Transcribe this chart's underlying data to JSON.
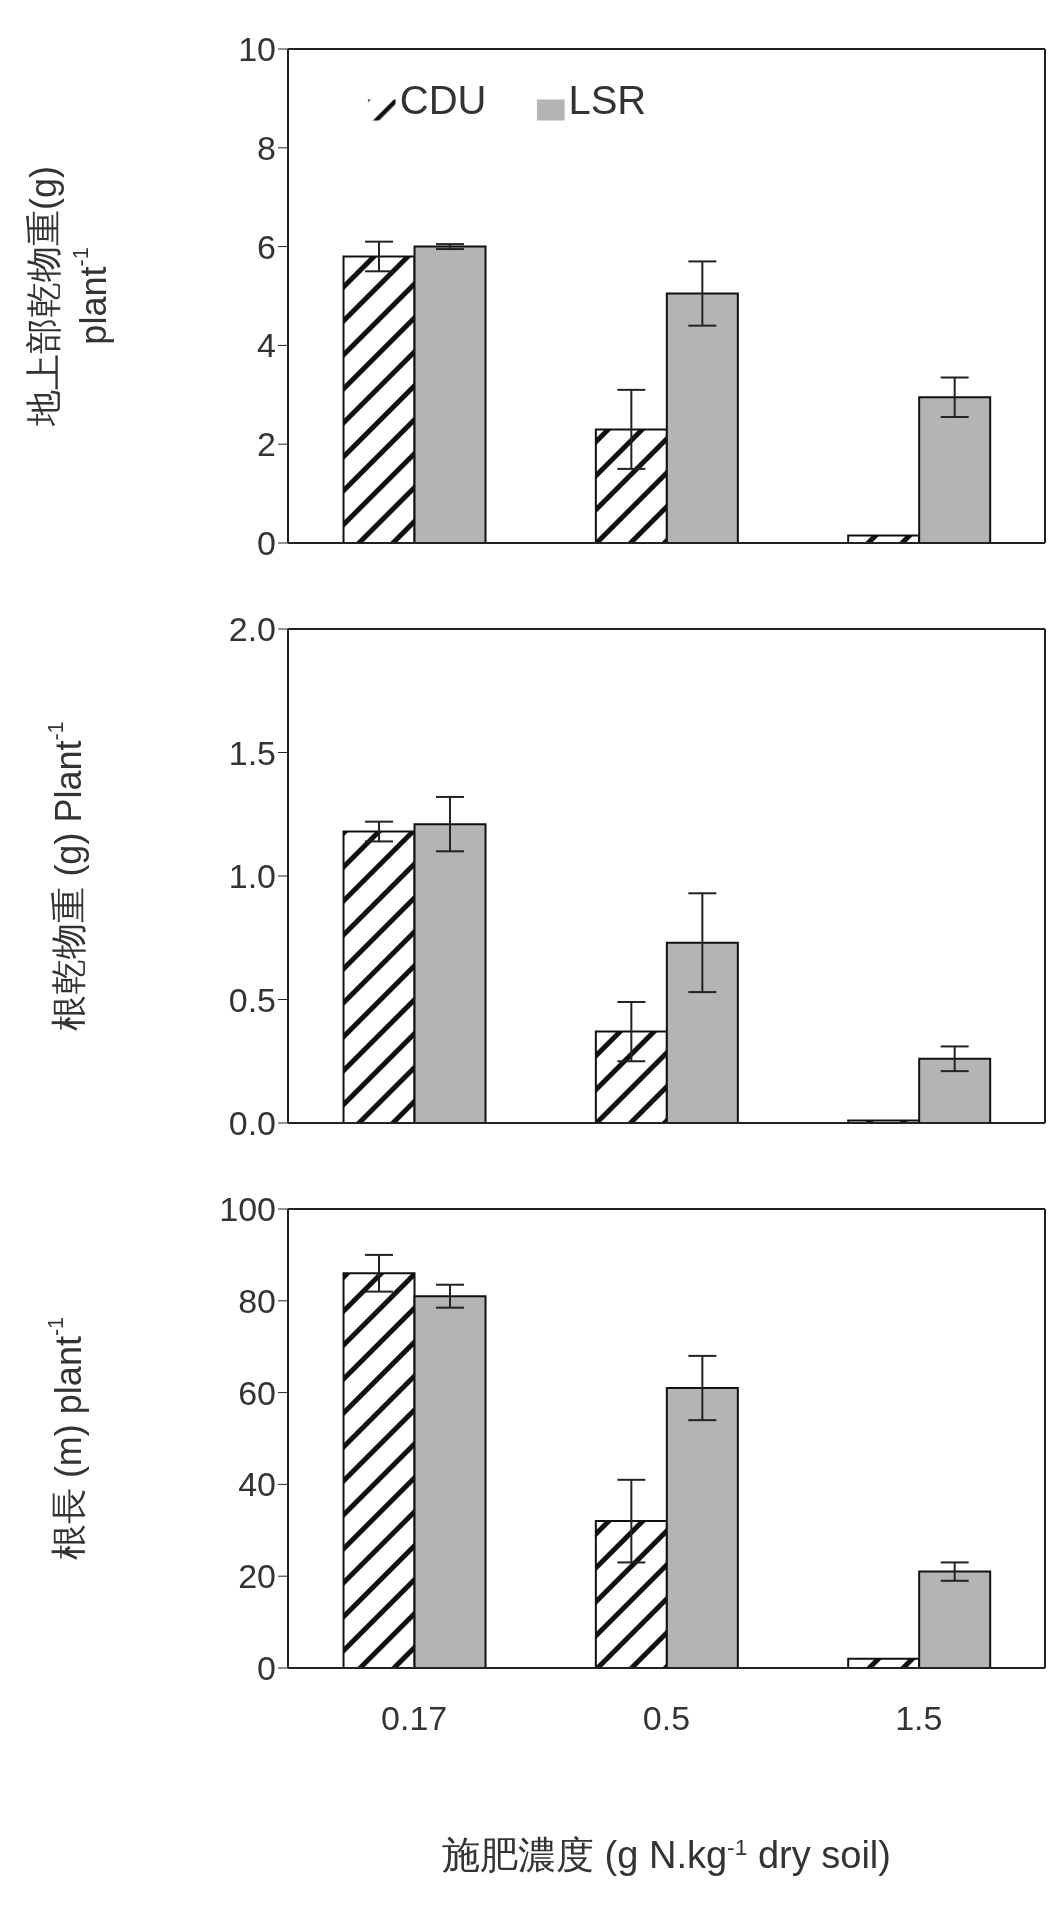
{
  "chart_data": [
    {
      "type": "bar",
      "ylabel": "地上部乾物重(g)\nplant$^{-1}$",
      "categories": [
        "0.17",
        "0.5",
        "1.5"
      ],
      "ylim": [
        0,
        10
      ],
      "yticks": [
        0,
        2,
        4,
        6,
        8,
        10
      ],
      "tick_labels": "y",
      "legend": "top",
      "grid": false,
      "series": [
        {
          "name": "CDU",
          "color": "#111111",
          "values": [
            5.8,
            2.3,
            0.15
          ],
          "errors": [
            0.3,
            0.8,
            null
          ]
        },
        {
          "name": "LSR",
          "color": "#b4b4b4",
          "values": [
            6.0,
            5.05,
            2.95
          ],
          "errors": [
            0.05,
            0.65,
            0.4
          ]
        }
      ]
    },
    {
      "type": "bar",
      "ylabel": "根乾物重 (g) Plant$^{-1}$",
      "categories": [
        "0.17",
        "0.5",
        "1.5"
      ],
      "ylim": [
        0,
        2.0
      ],
      "yticks": [
        {
          "value": 0,
          "label": "0.0"
        },
        0.5,
        {
          "value": 1,
          "label": "1.0"
        },
        1.5,
        {
          "value": 2,
          "label": "2.0"
        }
      ],
      "tick_labels": "y",
      "grid": false,
      "series": [
        {
          "color": "#111111",
          "values": [
            1.18,
            0.37,
            0.01
          ],
          "errors": [
            0.04,
            0.12,
            null
          ]
        },
        {
          "color": "#b4b4b4",
          "values": [
            1.21,
            0.73,
            0.26
          ],
          "errors": [
            0.11,
            0.2,
            0.05
          ]
        }
      ]
    },
    {
      "type": "bar",
      "ylabel": "根長 (m) plant$^{-1}$",
      "xlabel": "施肥濃度 (g N.kg$^{-1}$ dry soil)",
      "categories": [
        "0.17",
        "0.5",
        "1.5"
      ],
      "ylim": [
        0,
        100
      ],
      "yticks": [
        0,
        20,
        40,
        60,
        80,
        100
      ],
      "grid": false,
      "series": [
        {
          "color": "#111111",
          "values": [
            86,
            32,
            2
          ],
          "errors": [
            4,
            9,
            null
          ]
        },
        {
          "color": "#b4b4b4",
          "values": [
            81,
            61,
            21
          ],
          "errors": [
            2.5,
            7,
            2
          ]
        }
      ]
    }
  ]
}
